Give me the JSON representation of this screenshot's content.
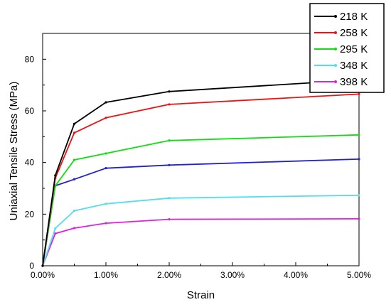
{
  "chart_data": {
    "type": "line",
    "xlabel": "Strain",
    "ylabel": "Uniaxial Tensile Stress (MPa)",
    "xlim": [
      0,
      0.05
    ],
    "ylim": [
      0,
      90
    ],
    "x_ticks": [
      0,
      0.01,
      0.02,
      0.03,
      0.04,
      0.05
    ],
    "x_tick_labels": [
      "0.00%",
      "1.00%",
      "2.00%",
      "3.00%",
      "4.00%",
      "5.00%"
    ],
    "y_ticks": [
      0,
      20,
      40,
      60,
      80
    ],
    "y_tick_labels": [
      "0",
      "20",
      "40",
      "60",
      "80"
    ],
    "grid": false,
    "legend_position": "top-right",
    "series": [
      {
        "name": "218 K",
        "color": "#000000",
        "points": [
          [
            0,
            0
          ],
          [
            0.002,
            35
          ],
          [
            0.005,
            55
          ],
          [
            0.01,
            63.3
          ],
          [
            0.02,
            67.5
          ],
          [
            0.05,
            72
          ]
        ]
      },
      {
        "name": "258 K",
        "color": "#ee1111",
        "points": [
          [
            0,
            0
          ],
          [
            0.002,
            34
          ],
          [
            0.005,
            51.5
          ],
          [
            0.01,
            57.3
          ],
          [
            0.02,
            62.5
          ],
          [
            0.05,
            66.5
          ]
        ]
      },
      {
        "name": "295 K",
        "color": "#11dd11",
        "points": [
          [
            0,
            0
          ],
          [
            0.002,
            31
          ],
          [
            0.005,
            41
          ],
          [
            0.01,
            43.5
          ],
          [
            0.02,
            48.5
          ],
          [
            0.05,
            50.7
          ]
        ]
      },
      {
        "name": "348 K",
        "color": "#55ddee",
        "points": [
          [
            0,
            0
          ],
          [
            0.002,
            14.5
          ],
          [
            0.005,
            21.3
          ],
          [
            0.01,
            24
          ],
          [
            0.02,
            26.2
          ],
          [
            0.05,
            27.3
          ]
        ]
      },
      {
        "name": "398 K",
        "color": "#dd22dd",
        "points": [
          [
            0,
            0
          ],
          [
            0.002,
            12.5
          ],
          [
            0.005,
            14.6
          ],
          [
            0.01,
            16.5
          ],
          [
            0.02,
            18
          ],
          [
            0.05,
            18.2
          ]
        ]
      },
      {
        "name": "",
        "color": "#2222cc",
        "points": [
          [
            0,
            0
          ],
          [
            0.002,
            31
          ],
          [
            0.005,
            33.5
          ],
          [
            0.01,
            37.8
          ],
          [
            0.02,
            39
          ],
          [
            0.05,
            41.3
          ]
        ]
      }
    ]
  }
}
